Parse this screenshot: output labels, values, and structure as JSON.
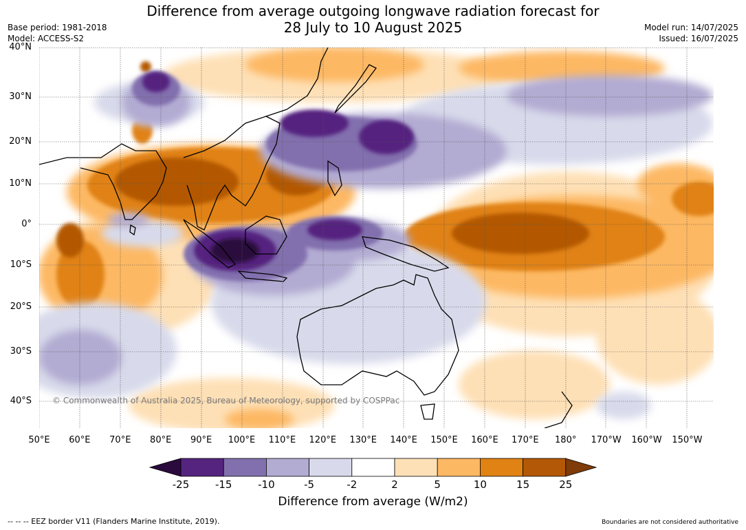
{
  "title_line1": "Difference from average outgoing longwave radiation forecast for",
  "title_line2": "28 July to 10 August 2025",
  "base_period": "Base period: 1981-2018",
  "model": "Model: ACCESS-S2",
  "model_run": "Model run: 14/07/2025",
  "issued": "Issued: 16/07/2025",
  "copyright": "© Commonwealth of Australia 2025, Bureau of Meteorology, supported by COSPPac",
  "lat_labels": [
    "40°N",
    "30°N",
    "20°N",
    "10°N",
    "0°",
    "10°S",
    "20°S",
    "30°S",
    "40°S"
  ],
  "lon_labels": [
    "50°E",
    "60°E",
    "70°E",
    "80°E",
    "90°E",
    "100°E",
    "110°E",
    "120°E",
    "130°E",
    "140°E",
    "150°E",
    "160°E",
    "170°E",
    "180°",
    "170°W",
    "160°W",
    "150°W"
  ],
  "colorbar": {
    "ticks": [
      "-25",
      "-15",
      "-10",
      "-5",
      "-2",
      "2",
      "5",
      "10",
      "15",
      "25"
    ],
    "colors": [
      "#2b0a3d",
      "#55247f",
      "#8270ae",
      "#b2abd2",
      "#d8daeb",
      "#ffffff",
      "#fee0b6",
      "#fdb863",
      "#e08214",
      "#b35806",
      "#7f3b08"
    ],
    "title": "Difference from average (W/m2)"
  },
  "footer_left": "--  --  -- EEZ border V11 (Flanders Marine Institute, 2019).",
  "footer_right": "Boundaries are not considered authoritative"
}
